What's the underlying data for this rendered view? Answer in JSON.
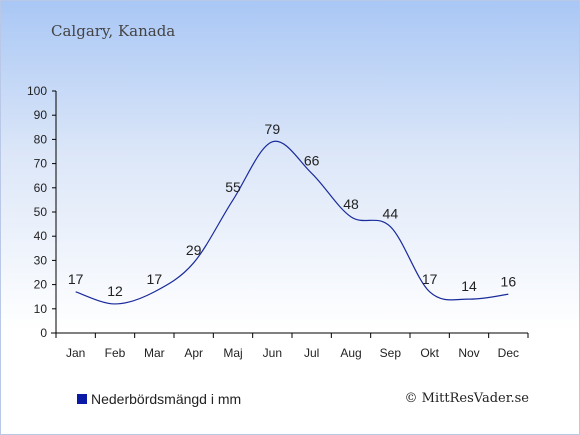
{
  "header": {
    "title": "Calgary, Kanada"
  },
  "legend": {
    "label": "Nederbördsmängd i mm",
    "color": "#0a1aa6"
  },
  "credit": "© MittResVader.se",
  "chart_data": {
    "type": "line",
    "categories": [
      "Jan",
      "Feb",
      "Mar",
      "Apr",
      "Maj",
      "Jun",
      "Jul",
      "Aug",
      "Sep",
      "Okt",
      "Nov",
      "Dec"
    ],
    "series": [
      {
        "name": "Nederbördsmängd i mm",
        "values": [
          17,
          12,
          17,
          29,
          55,
          79,
          66,
          48,
          44,
          17,
          14,
          16
        ]
      }
    ],
    "ylim": [
      0,
      100
    ],
    "yticks": [
      0,
      10,
      20,
      30,
      40,
      50,
      60,
      70,
      80,
      90,
      100
    ],
    "line_color": "#1a2b9c",
    "grid": false,
    "data_labels": true,
    "legend_position": "bottom-left"
  }
}
